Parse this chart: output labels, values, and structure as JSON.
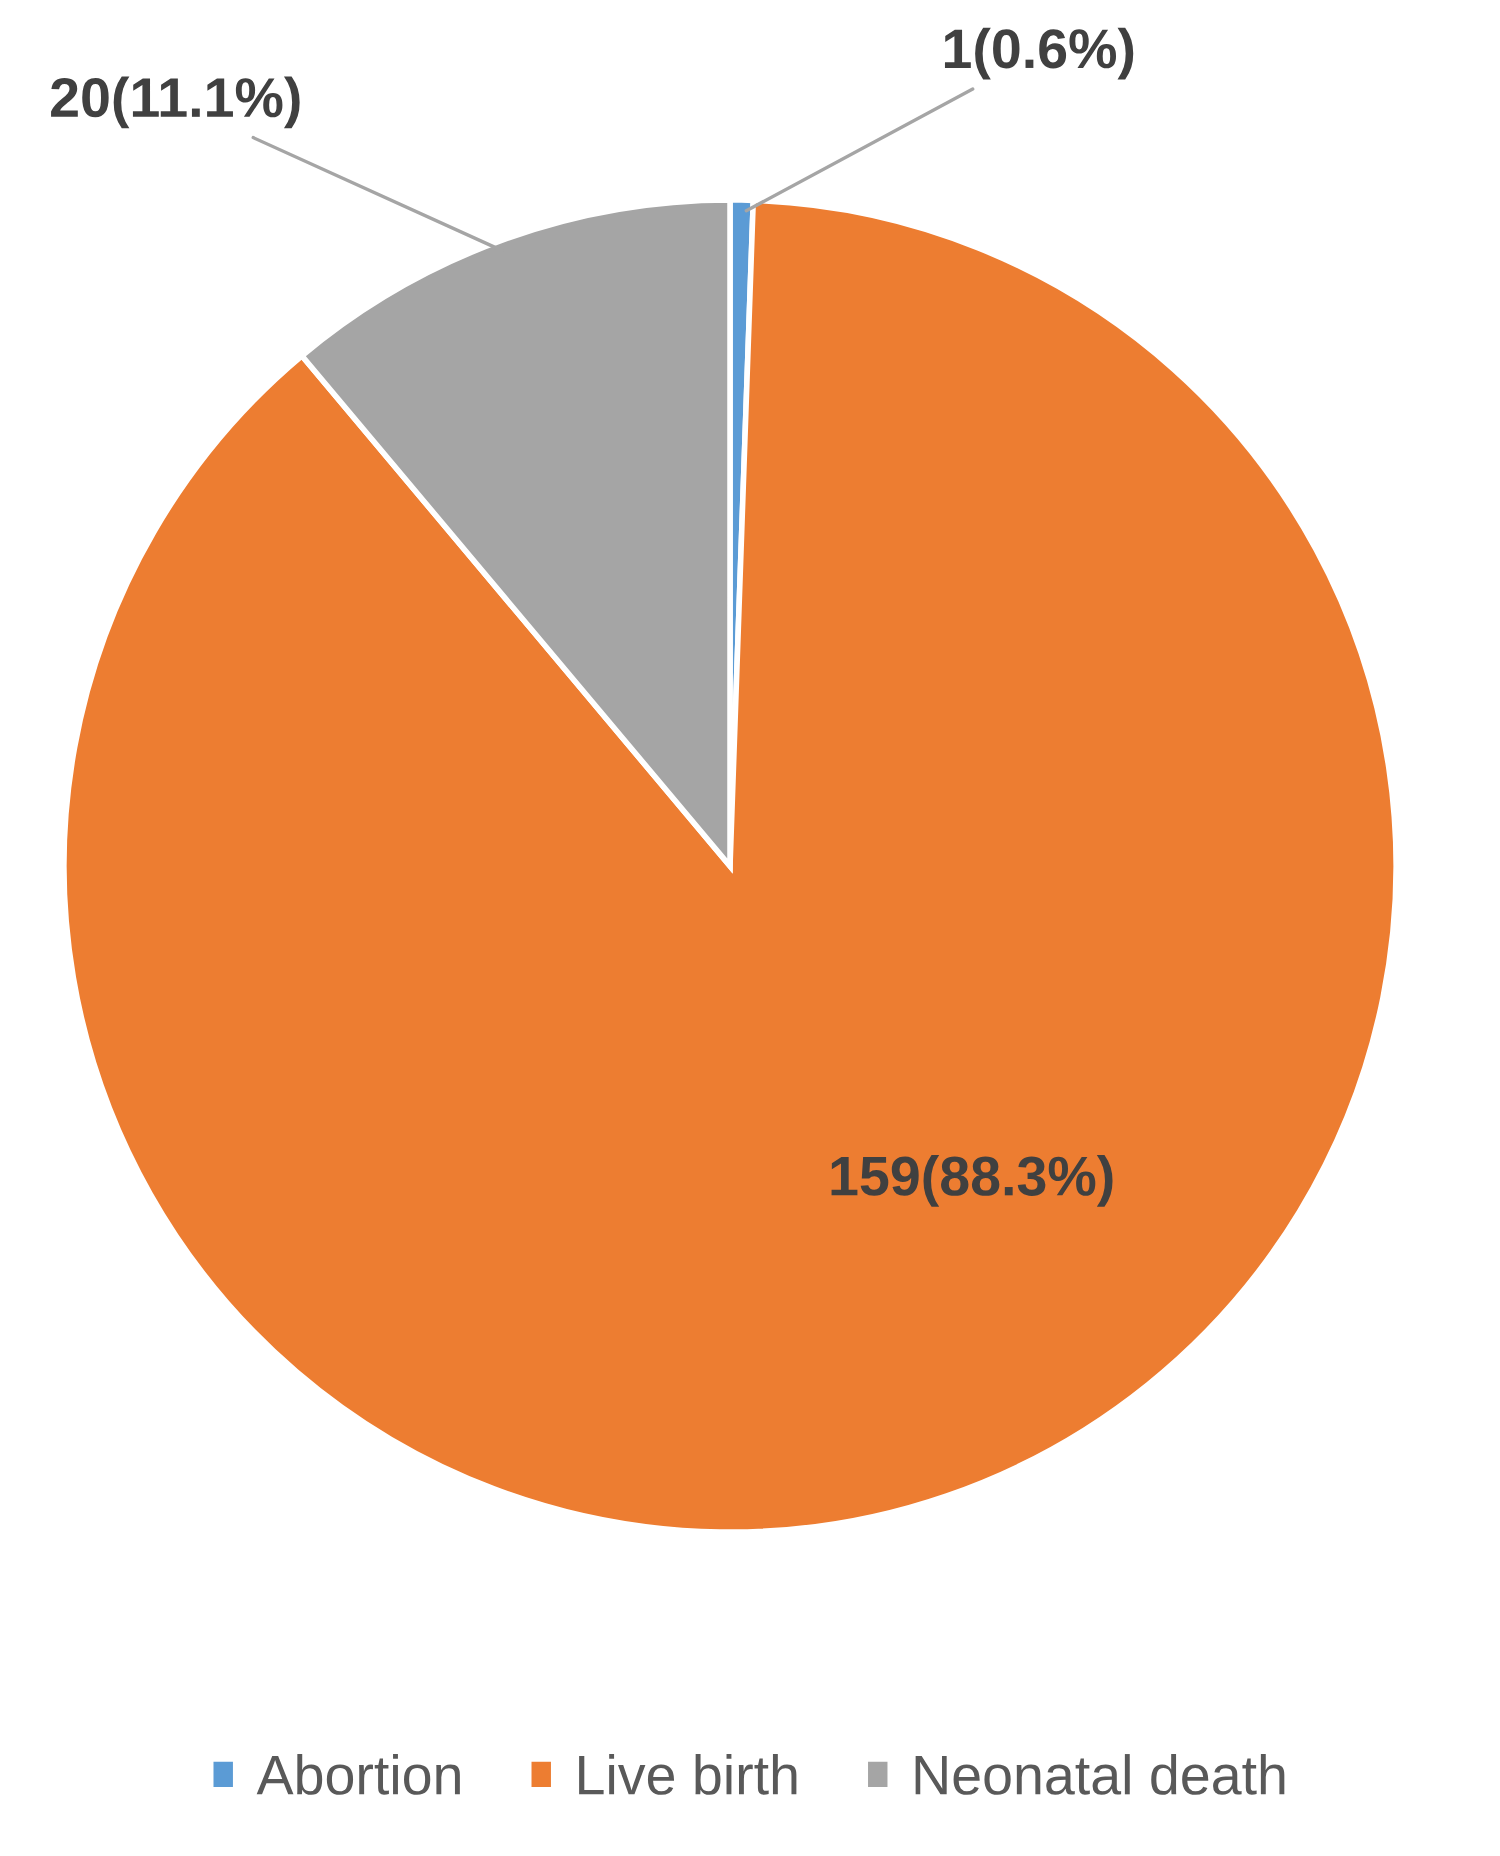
{
  "chart_data": {
    "type": "pie",
    "categories": [
      "Abortion",
      "Live birth",
      "Neonatal death"
    ],
    "values": [
      1,
      159,
      20
    ],
    "value_labels": [
      "1(0.6%)",
      "159(88.3%)",
      "20(11.1%)"
    ],
    "colors": [
      "#5b9bd5",
      "#ed7d31",
      "#a5a5a5"
    ],
    "legend": "bottom"
  }
}
